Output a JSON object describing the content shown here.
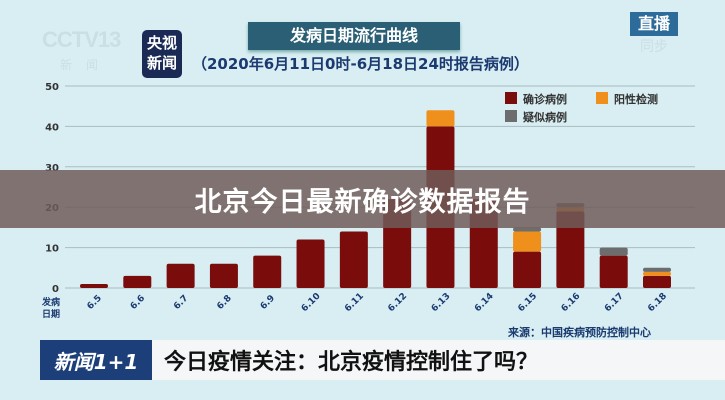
{
  "header": {
    "channel_logo": "CCTV 13 新闻",
    "badge": "央视新闻",
    "title": "发病日期流行曲线",
    "subtitle": "（2020年6月11日0时-6月18日24时报告病例）",
    "live_label": "直播",
    "live_sub": "同步"
  },
  "banner": {
    "text": "北京今日最新确诊数据报告"
  },
  "chart_data": {
    "type": "bar",
    "stacked": true,
    "title": "发病日期流行曲线",
    "subtitle": "（2020年6月11日0时-6月18日24时报告病例）",
    "xlabel": "发病日期",
    "ylabel": "",
    "ylim": [
      0,
      50
    ],
    "yticks": [
      0,
      10,
      20,
      30,
      40,
      50
    ],
    "grid": true,
    "legend_position": "top-right",
    "categories": [
      "6.5",
      "6.6",
      "6.7",
      "6.8",
      "6.9",
      "6.10",
      "6.11",
      "6.12",
      "6.13",
      "6.14",
      "6.15",
      "6.16",
      "6.17",
      "6.18"
    ],
    "series": [
      {
        "name": "确诊病例",
        "color": "#7a0c0c",
        "values": [
          1,
          3,
          6,
          6,
          8,
          12,
          14,
          22,
          40,
          22,
          9,
          19,
          8,
          3
        ]
      },
      {
        "name": "阳性检测",
        "color": "#ef8f1c",
        "values": [
          0,
          0,
          0,
          0,
          0,
          0,
          0,
          0,
          4,
          0,
          5,
          1,
          0,
          1
        ]
      },
      {
        "name": "疑似病例",
        "color": "#6d6d6d",
        "values": [
          0,
          0,
          0,
          0,
          0,
          0,
          0,
          0,
          0,
          0,
          1,
          1,
          2,
          1
        ]
      }
    ],
    "source": "来源：中国疾病预防控制中心"
  },
  "bottom_bar": {
    "logo": "新闻1+1",
    "headline": "今日疫情关注：北京疫情控制住了吗？"
  }
}
